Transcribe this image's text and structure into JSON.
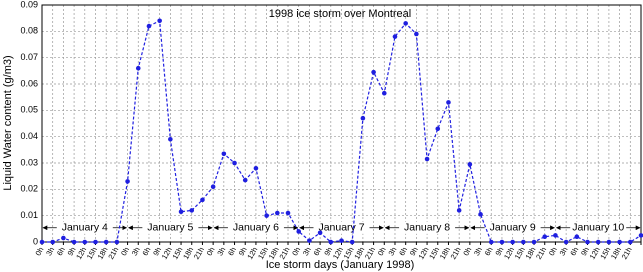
{
  "chart_data": {
    "type": "line",
    "title": "1998 ice storm over Montreal",
    "x_label": "Ice storm days (January 1998)",
    "y_label": "Liquid Water content (g/m3)",
    "categories": [
      "0h",
      "3h",
      "6h",
      "9h",
      "12h",
      "15h",
      "18h",
      "21h",
      "0h",
      "3h",
      "6h",
      "9h",
      "12h",
      "15h",
      "18h",
      "21h",
      "0h",
      "3h",
      "6h",
      "9h",
      "12h",
      "15h",
      "18h",
      "21h",
      "0h",
      "3h",
      "6h",
      "9h",
      "12h",
      "15h",
      "18h",
      "21h",
      "0h",
      "3h",
      "6h",
      "9h",
      "12h",
      "15h",
      "18h",
      "21h",
      "0h",
      "3h",
      "6h",
      "9h",
      "12h",
      "15h",
      "18h",
      "21h",
      "0h",
      "3h",
      "6h",
      "9h",
      "12h",
      "15h",
      "18h",
      "21h",
      null
    ],
    "series": [
      {
        "color": "#1f1fe0",
        "values": [
          0,
          0,
          0.0015,
          0,
          0,
          0,
          0,
          0,
          0.023,
          0.066,
          0.082,
          0.084,
          0.039,
          0.0115,
          0.012,
          0.016,
          0.021,
          0.0335,
          0.03,
          0.0235,
          0.028,
          0.01,
          0.011,
          0.011,
          0.004,
          0.0005,
          0.0035,
          0,
          0.0005,
          0,
          0.047,
          0.0645,
          0.0565,
          0.078,
          0.083,
          0.079,
          0.0315,
          0.043,
          0.053,
          0.012,
          0.0295,
          0.0105,
          0,
          0,
          0,
          0,
          0,
          0.002,
          0.0025,
          0,
          0.002,
          0,
          0,
          0,
          0,
          0,
          0.0025
        ]
      }
    ],
    "day_labels": [
      "January 4",
      "January 5",
      "January 6",
      "January 7",
      "January 8",
      "January 9",
      "January 10"
    ],
    "ylim": [
      0,
      0.09
    ],
    "yticks": [
      0,
      0.01,
      0.02,
      0.03,
      0.04,
      0.05,
      0.06,
      0.07,
      0.08,
      0.09
    ],
    "grid": true
  }
}
